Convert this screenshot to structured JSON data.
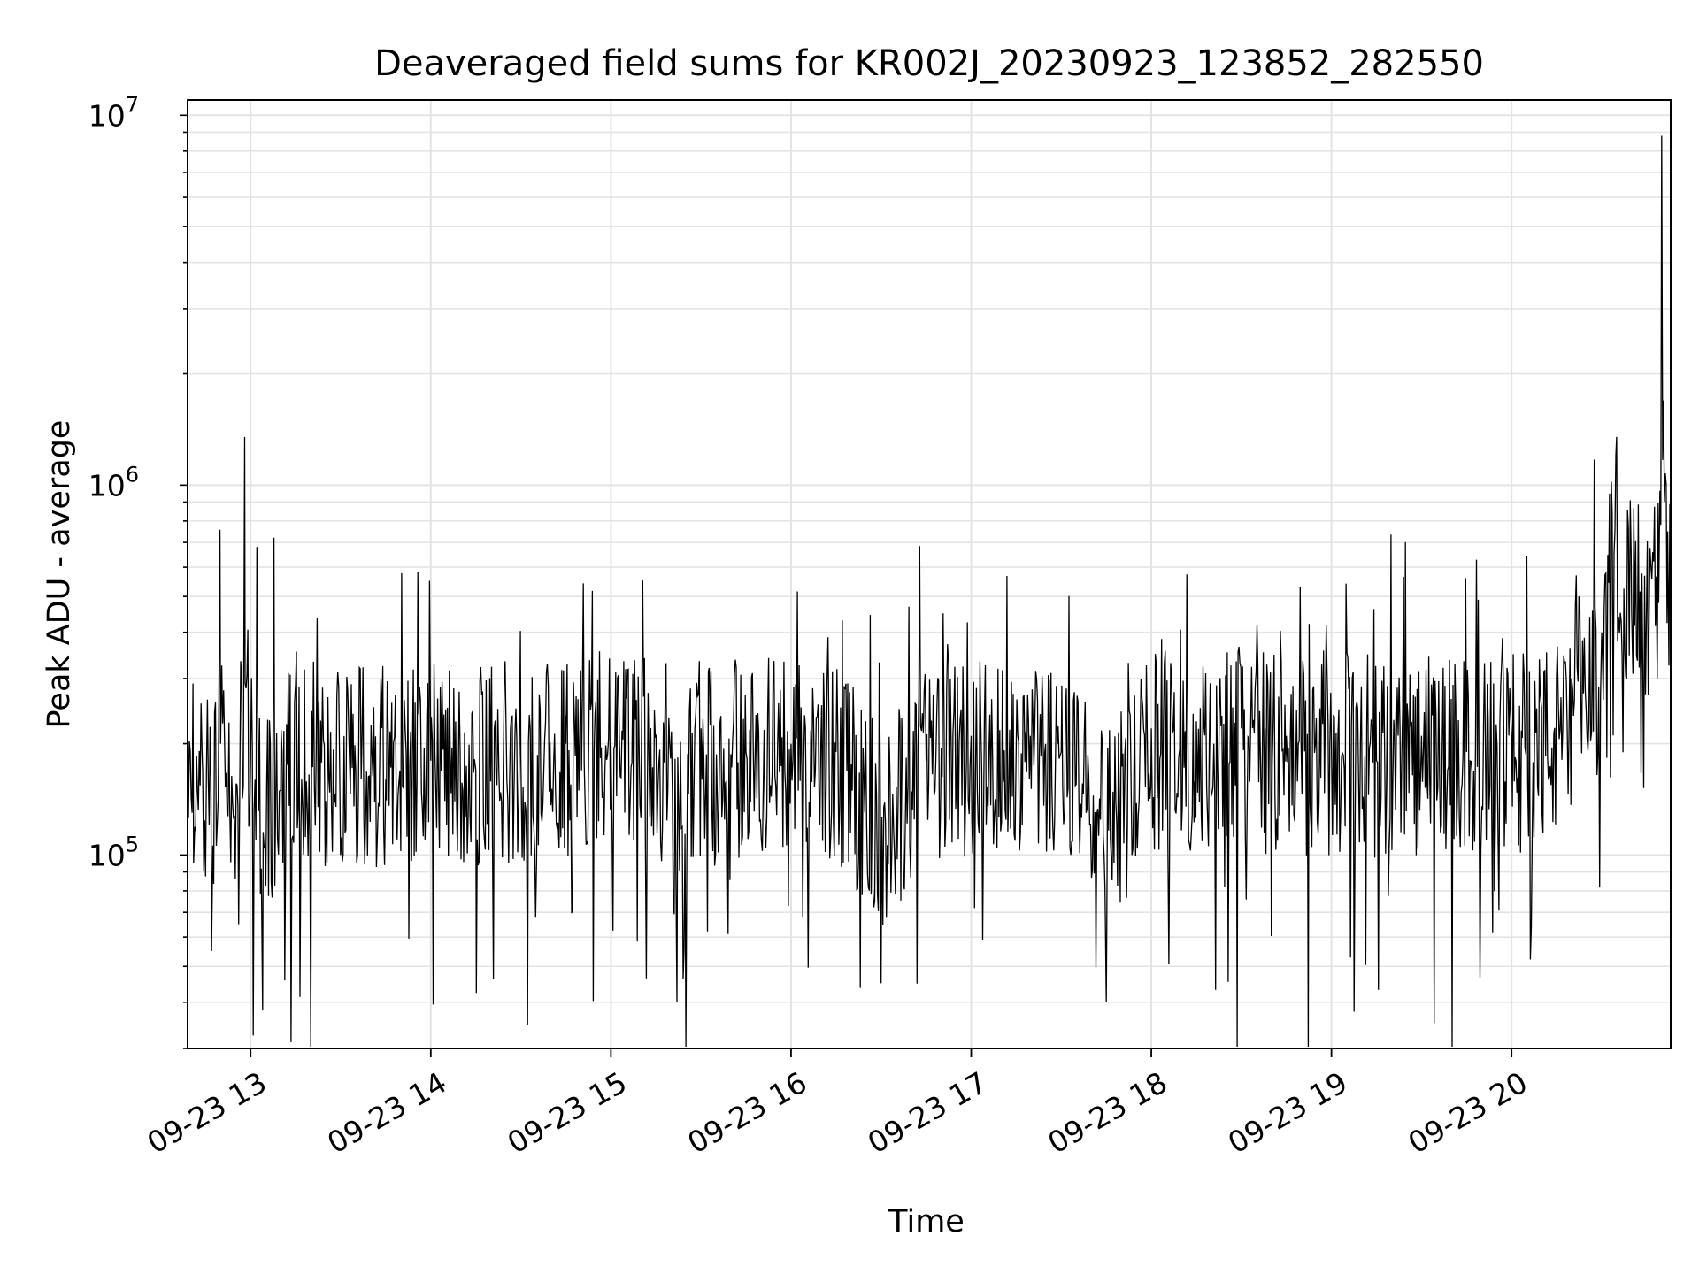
{
  "chart_data": {
    "type": "line",
    "title": "Deaveraged field sums for KR002J_20230923_123852_282550",
    "xlabel": "Time",
    "ylabel": "Peak ADU - average",
    "yscale": "log",
    "ylim": [
      30000,
      11000000
    ],
    "xlim": [
      "2023-09-23T12:39",
      "2023-09-23T20:53"
    ],
    "x_ticks": [
      {
        "label": "09-23 13",
        "value": "2023-09-23T13:00"
      },
      {
        "label": "09-23 14",
        "value": "2023-09-23T14:00"
      },
      {
        "label": "09-23 15",
        "value": "2023-09-23T15:00"
      },
      {
        "label": "09-23 16",
        "value": "2023-09-23T16:00"
      },
      {
        "label": "09-23 17",
        "value": "2023-09-23T17:00"
      },
      {
        "label": "09-23 18",
        "value": "2023-09-23T18:00"
      },
      {
        "label": "09-23 19",
        "value": "2023-09-23T19:00"
      },
      {
        "label": "09-23 20",
        "value": "2023-09-23T20:00"
      }
    ],
    "y_ticks": [
      {
        "base": "10",
        "exp": "5",
        "value": 100000
      },
      {
        "base": "10",
        "exp": "6",
        "value": 1000000
      },
      {
        "base": "10",
        "exp": "7",
        "value": 10000000
      }
    ],
    "grid": true,
    "line_color": "#000000",
    "series": [
      {
        "x": [
          "2023-09-23T12:39",
          "2023-09-23T12:41",
          "2023-09-23T12:44",
          "2023-09-23T12:47",
          "2023-09-23T12:50",
          "2023-09-23T12:53",
          "2023-09-23T12:56",
          "2023-09-23T12:58",
          "2023-09-23T13:00",
          "2023-09-23T13:04",
          "2023-09-23T13:10",
          "2023-09-23T13:17",
          "2023-09-23T13:25",
          "2023-09-23T13:35",
          "2023-09-23T13:45",
          "2023-09-23T14:00",
          "2023-09-23T14:15",
          "2023-09-23T14:30",
          "2023-09-23T14:45",
          "2023-09-23T14:55",
          "2023-09-23T15:00",
          "2023-09-23T15:15",
          "2023-09-23T15:22",
          "2023-09-23T15:30",
          "2023-09-23T15:45",
          "2023-09-23T16:00",
          "2023-09-23T16:15",
          "2023-09-23T16:30",
          "2023-09-23T16:45",
          "2023-09-23T17:00",
          "2023-09-23T17:15",
          "2023-09-23T17:30",
          "2023-09-23T17:45",
          "2023-09-23T18:00",
          "2023-09-23T18:15",
          "2023-09-23T18:30",
          "2023-09-23T18:45",
          "2023-09-23T19:00",
          "2023-09-23T19:15",
          "2023-09-23T19:30",
          "2023-09-23T19:45",
          "2023-09-23T20:00",
          "2023-09-23T20:10",
          "2023-09-23T20:20",
          "2023-09-23T20:30",
          "2023-09-23T20:35",
          "2023-09-23T20:40",
          "2023-09-23T20:45",
          "2023-09-23T20:49",
          "2023-09-23T20:50",
          "2023-09-23T20:52"
        ],
        "y": [
          280000,
          95000,
          170000,
          55000,
          200000,
          140000,
          65000,
          1350000,
          180000,
          38000,
          150000,
          160000,
          140000,
          170000,
          160000,
          180000,
          170000,
          185000,
          200000,
          260000,
          200000,
          210000,
          40000,
          220000,
          190000,
          200000,
          190000,
          45000,
          180000,
          210000,
          200000,
          190000,
          40000,
          220000,
          230000,
          220000,
          210000,
          200000,
          180000,
          210000,
          190000,
          210000,
          250000,
          300000,
          400000,
          1350000,
          450000,
          520000,
          480000,
          8800000,
          750000
        ]
      }
    ]
  }
}
